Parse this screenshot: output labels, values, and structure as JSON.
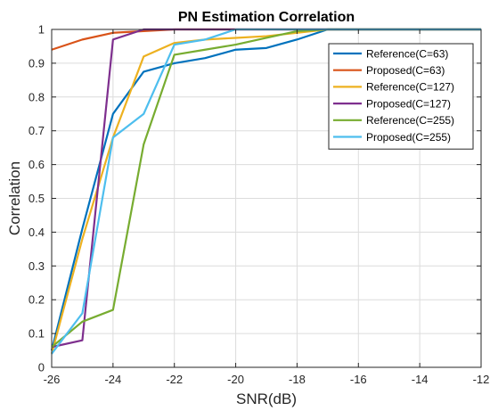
{
  "chart_data": {
    "type": "line",
    "title": "PN Estimation Correlation",
    "xlabel": "SNR(dB)",
    "ylabel": "Correlation",
    "xlim": [
      -26,
      -12
    ],
    "ylim": [
      0,
      1
    ],
    "xticks": [
      -26,
      -24,
      -22,
      -20,
      -18,
      -16,
      -14,
      -12
    ],
    "yticks": [
      0,
      0.1,
      0.2,
      0.3,
      0.4,
      0.5,
      0.6,
      0.7,
      0.8,
      0.9,
      1
    ],
    "x_tick_labels": [
      "-26",
      "-24",
      "-22",
      "-20",
      "-18",
      "-16",
      "-14",
      "-12"
    ],
    "y_tick_labels": [
      "0",
      "0.1",
      "0.2",
      "0.3",
      "0.4",
      "0.5",
      "0.6",
      "0.7",
      "0.8",
      "0.9",
      "1"
    ],
    "grid": true,
    "legend_position": "top-right",
    "x": [
      -26,
      -25,
      -24,
      -23,
      -22,
      -21,
      -20,
      -19,
      -18,
      -17,
      -16,
      -15,
      -14,
      -13,
      -12
    ],
    "series": [
      {
        "name": "Reference(C=63)",
        "color": "#0072BD",
        "values": [
          0.05,
          0.41,
          0.75,
          0.875,
          0.9,
          0.915,
          0.94,
          0.945,
          0.97,
          1.0,
          1.0,
          1.0,
          1.0,
          1.0,
          1.0
        ]
      },
      {
        "name": "Proposed(C=63)",
        "color": "#D95319",
        "values": [
          0.94,
          0.97,
          0.99,
          0.995,
          1.0,
          1.0,
          1.0,
          1.0,
          1.0,
          1.0,
          1.0,
          1.0,
          1.0,
          1.0,
          1.0
        ]
      },
      {
        "name": "Reference(C=127)",
        "color": "#EDB120",
        "values": [
          0.04,
          0.38,
          0.68,
          0.92,
          0.96,
          0.97,
          0.975,
          0.98,
          0.99,
          1.0,
          1.0,
          1.0,
          1.0,
          1.0,
          1.0
        ]
      },
      {
        "name": "Proposed(C=127)",
        "color": "#7E2F8E",
        "values": [
          0.06,
          0.08,
          0.97,
          1.0,
          1.0,
          1.0,
          1.0,
          1.0,
          1.0,
          1.0,
          1.0,
          1.0,
          1.0,
          1.0,
          1.0
        ]
      },
      {
        "name": "Reference(C=255)",
        "color": "#77AC30",
        "values": [
          0.06,
          0.135,
          0.17,
          0.66,
          0.925,
          0.94,
          0.955,
          0.975,
          0.995,
          1.0,
          1.0,
          1.0,
          1.0,
          1.0,
          1.0
        ]
      },
      {
        "name": "Proposed(C=255)",
        "color": "#4DBEEE",
        "values": [
          0.04,
          0.16,
          0.68,
          0.75,
          0.955,
          0.97,
          1.0,
          1.0,
          1.0,
          1.0,
          1.0,
          1.0,
          1.0,
          1.0,
          1.0
        ]
      }
    ]
  }
}
